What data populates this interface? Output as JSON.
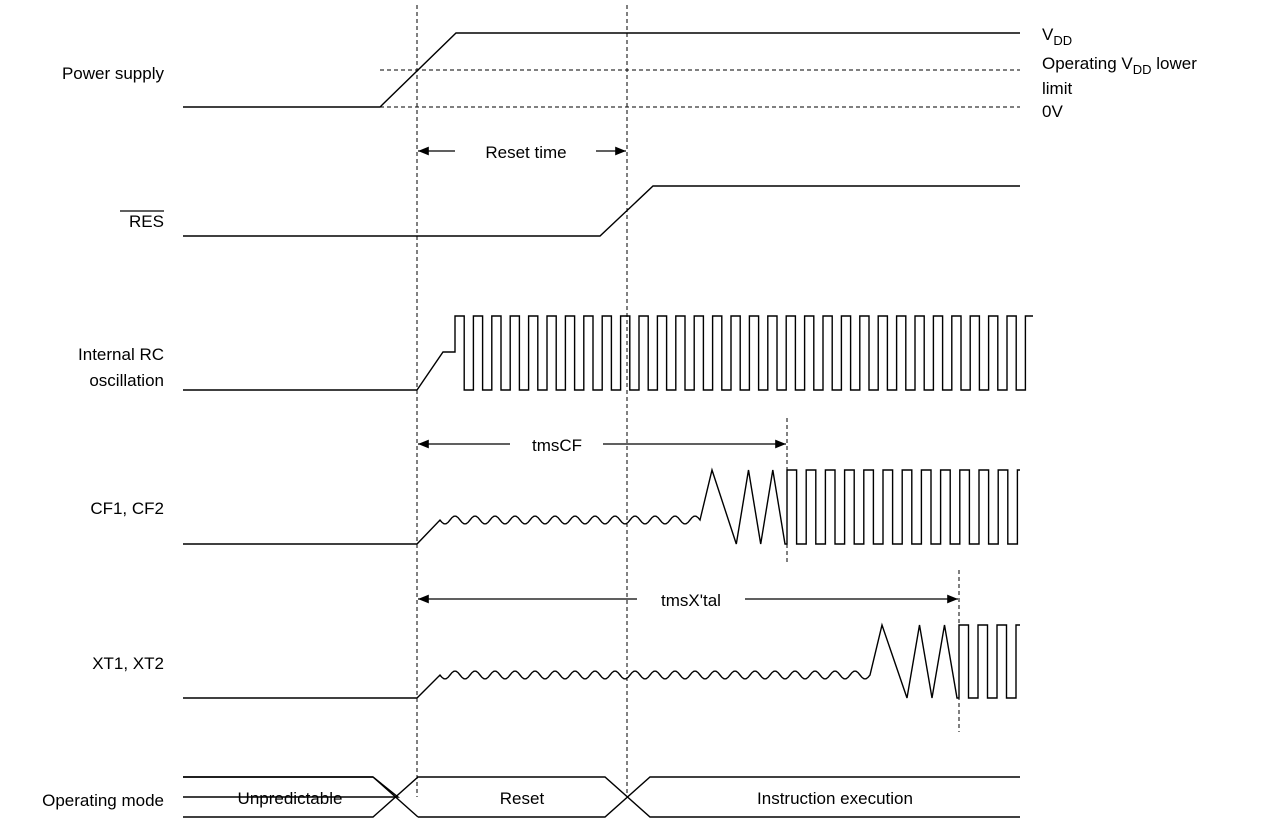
{
  "signals": {
    "power_supply": "Power supply",
    "res": "RES",
    "rc_line1": "Internal RC",
    "rc_line2": "oscillation",
    "cf": "CF1, CF2",
    "xt": "XT1, XT2",
    "operating_mode": "Operating mode"
  },
  "levels": {
    "vdd_main": "V",
    "vdd_sub": "DD",
    "lower_prefix": "Operating V",
    "lower_sub": "DD",
    "lower_suffix": " lower",
    "lower_line2": "limit",
    "zero": "0V"
  },
  "timings": {
    "reset_time": "Reset time",
    "tmscf": "tmsCF",
    "tmsxtal": "tmsX'tal"
  },
  "modes": {
    "unpredictable": "Unpredictable",
    "reset": "Reset",
    "instruction": "Instruction execution"
  }
}
